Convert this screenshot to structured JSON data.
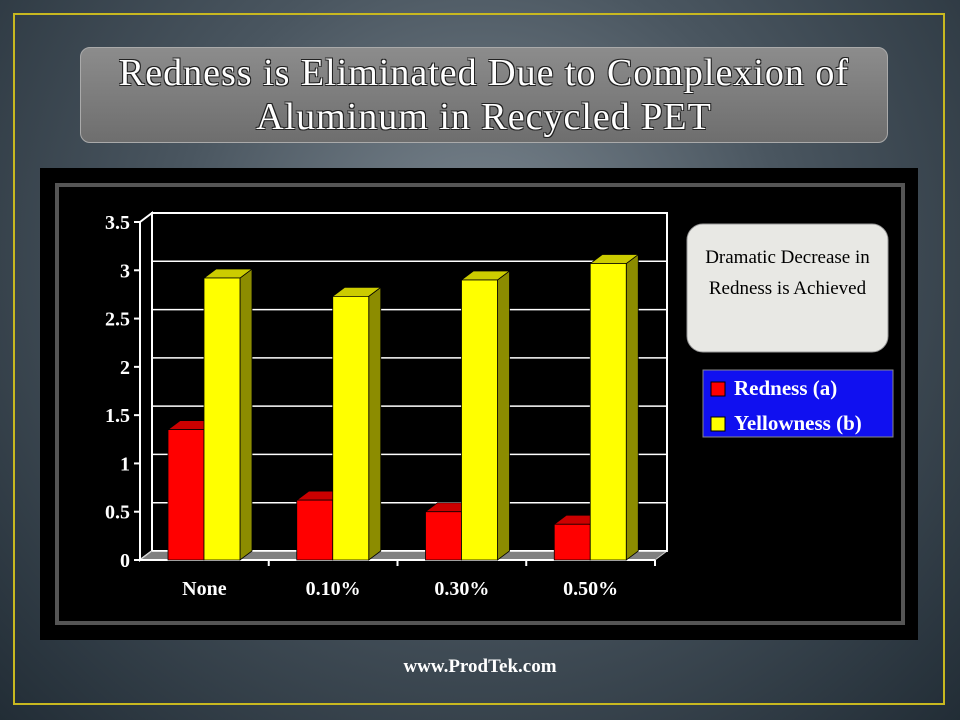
{
  "chart_data": {
    "type": "bar3d",
    "title": "Redness is Eliminated Due to Complexion of  Aluminum in Recycled PET",
    "annotation": "Dramatic Decrease in Redness is Achieved",
    "categories": [
      "None",
      "0.10%",
      "0.30%",
      "0.50%"
    ],
    "series": [
      {
        "name": "Redness (a)",
        "color": "#ff0000",
        "values": [
          1.35,
          0.62,
          0.5,
          0.37
        ]
      },
      {
        "name": "Yellowness (b)",
        "color": "#ffff00",
        "values": [
          2.92,
          2.73,
          2.9,
          3.07
        ]
      }
    ],
    "ylim": [
      0,
      3.5
    ],
    "yticks": [
      0,
      0.5,
      1,
      1.5,
      2,
      2.5,
      3,
      3.5
    ],
    "grid": true
  },
  "footer": "www.ProdTek.com"
}
